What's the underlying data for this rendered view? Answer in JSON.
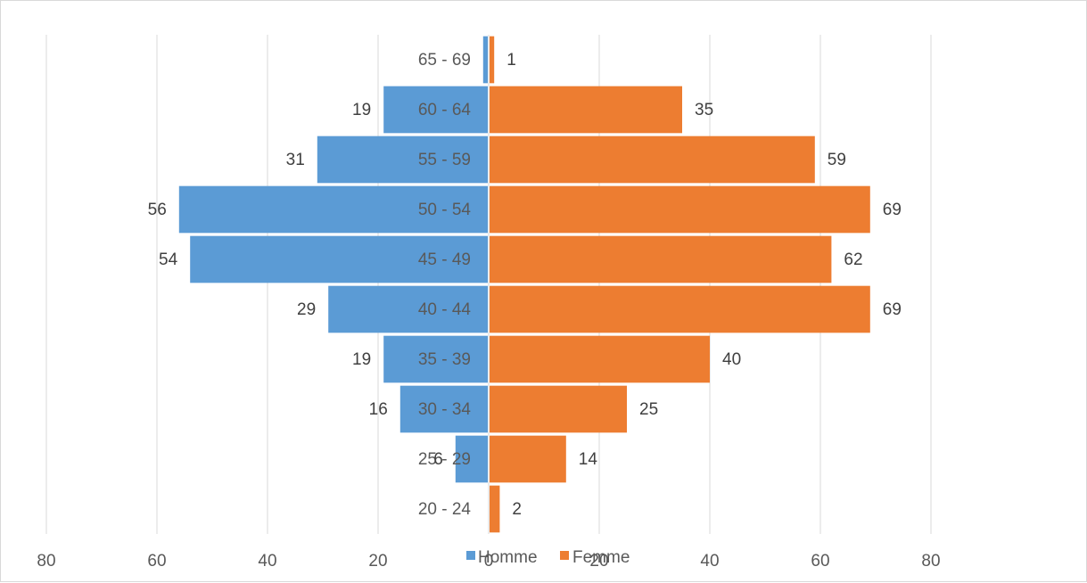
{
  "chart_data": {
    "type": "bar",
    "orientation": "horizontal",
    "layout": "population-pyramid",
    "title": "",
    "xlabel": "",
    "ylabel": "",
    "xlim": [
      -80,
      80
    ],
    "x_tick_values": [
      -80,
      -60,
      -40,
      -20,
      0,
      20,
      40,
      60,
      80
    ],
    "x_tick_labels": [
      "80",
      "60",
      "40",
      "20",
      "0",
      "20",
      "40",
      "60",
      "80"
    ],
    "categories": [
      "65 - 69",
      "60 - 64",
      "55 - 59",
      "50 - 54",
      "45 - 49",
      "40 - 44",
      "35 - 39",
      "30 - 34",
      "25 - 29",
      "20 - 24"
    ],
    "series": [
      {
        "name": "Homme",
        "color": "#5b9bd5",
        "side": "left",
        "values": [
          1,
          19,
          31,
          56,
          54,
          29,
          19,
          16,
          6,
          0
        ],
        "labels": [
          "",
          "19",
          "31",
          "56",
          "54",
          "29",
          "19",
          "16",
          "6",
          ""
        ]
      },
      {
        "name": "Femme",
        "color": "#ed7d31",
        "side": "right",
        "values": [
          1,
          35,
          59,
          69,
          62,
          69,
          40,
          25,
          14,
          2
        ],
        "labels": [
          "1",
          "35",
          "59",
          "69",
          "62",
          "69",
          "40",
          "25",
          "14",
          "2"
        ]
      }
    ],
    "grid": true,
    "gridline_color": "#d9d9d9",
    "legend_position": "bottom"
  }
}
